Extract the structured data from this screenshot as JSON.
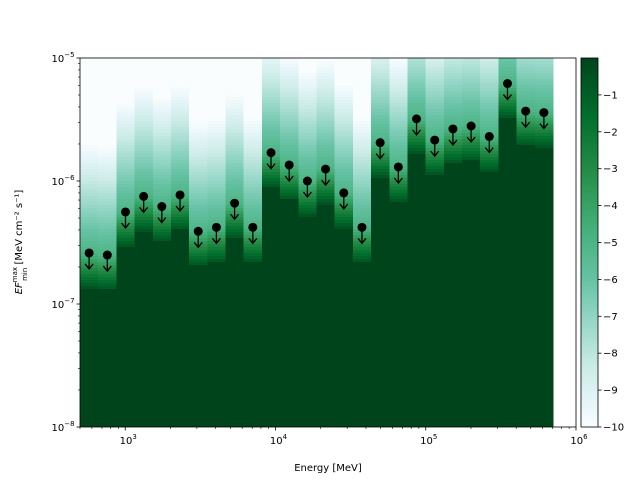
{
  "chart_data": {
    "type": "heatmap",
    "title": "",
    "xlabel": "Energy [MeV]",
    "ylabel_main": "EF",
    "ylabel_super": "max",
    "ylabel_sub": "min",
    "ylabel_unit": "[MeV cm⁻² s⁻¹]",
    "x_scale": "log",
    "y_scale": "log",
    "xlim": [
      500,
      1000000
    ],
    "ylim": [
      1e-08,
      1e-05
    ],
    "x_ticks": [
      {
        "value": 1000,
        "label_base": "10",
        "label_exp": "3"
      },
      {
        "value": 10000,
        "label_base": "10",
        "label_exp": "4"
      },
      {
        "value": 100000,
        "label_base": "10",
        "label_exp": "5"
      },
      {
        "value": 1000000,
        "label_base": "10",
        "label_exp": "6"
      }
    ],
    "y_ticks": [
      {
        "value": 1e-08,
        "label_base": "10",
        "label_exp": "−8"
      },
      {
        "value": 1e-07,
        "label_base": "10",
        "label_exp": "−7"
      },
      {
        "value": 1e-06,
        "label_base": "10",
        "label_exp": "−6"
      },
      {
        "value": 1e-05,
        "label_base": "10",
        "label_exp": "−5"
      }
    ],
    "colorbar": {
      "min": -10,
      "max": 0,
      "ticks": [
        -1,
        -2,
        -3,
        -4,
        -5,
        -6,
        -7,
        -8,
        -9,
        -10
      ],
      "tick_labels": [
        "−1",
        "−2",
        "−3",
        "−4",
        "−5",
        "−6",
        "−7",
        "−8",
        "−9",
        "−10"
      ],
      "colormap": "BuGn_r",
      "color_low": "#00441b",
      "color_high": "#f7fcfd"
    },
    "band_edges": [
      500,
      661,
      873,
      1154,
      1525,
      2015,
      2663,
      3519,
      4651,
      6146,
      8122,
      10733,
      14184,
      18745,
      24771,
      32734,
      43258,
      57166,
      75544,
      99831,
      131926,
      174340,
      230389,
      304458,
      402338,
      531683,
      702613,
      1000000
    ],
    "upper_limits": [
      {
        "energy": 575,
        "value": 2.6e-07
      },
      {
        "energy": 760,
        "value": 2.5e-07
      },
      {
        "energy": 1004,
        "value": 5.6e-07
      },
      {
        "energy": 1326,
        "value": 7.5e-07
      },
      {
        "energy": 1752,
        "value": 6.2e-07
      },
      {
        "energy": 2316,
        "value": 7.7e-07
      },
      {
        "energy": 3060,
        "value": 3.9e-07
      },
      {
        "energy": 4044,
        "value": 4.2e-07
      },
      {
        "energy": 5345,
        "value": 6.6e-07
      },
      {
        "energy": 7064,
        "value": 4.2e-07
      },
      {
        "energy": 9337,
        "value": 1.7e-06
      },
      {
        "energy": 12339,
        "value": 1.35e-06
      },
      {
        "energy": 16306,
        "value": 1e-06
      },
      {
        "energy": 21549,
        "value": 1.25e-06
      },
      {
        "energy": 28476,
        "value": 8e-07
      },
      {
        "energy": 37632,
        "value": 4.2e-07
      },
      {
        "energy": 49729,
        "value": 2.05e-06
      },
      {
        "energy": 65716,
        "value": 1.3e-06
      },
      {
        "energy": 86844,
        "value": 3.2e-06
      },
      {
        "energy": 114764,
        "value": 2.15e-06
      },
      {
        "energy": 151658,
        "value": 2.65e-06
      },
      {
        "energy": 200413,
        "value": 2.8e-06
      },
      {
        "energy": 264836,
        "value": 2.3e-06
      },
      {
        "energy": 349979,
        "value": 6.2e-06
      },
      {
        "energy": 462506,
        "value": 3.7e-06
      },
      {
        "energy": 611176,
        "value": 3.6e-06
      }
    ],
    "grid": false,
    "legend": "none"
  }
}
